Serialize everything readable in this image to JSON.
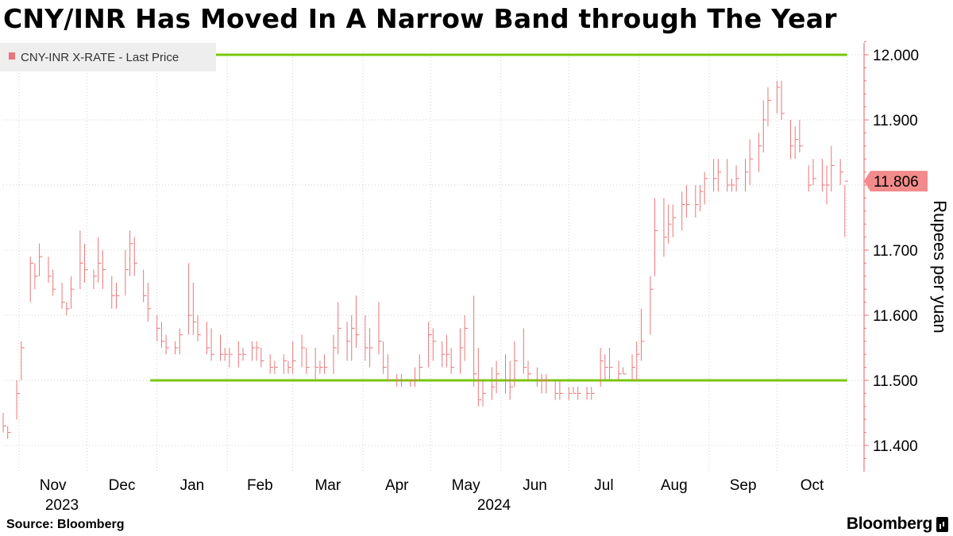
{
  "title": "CNY/INR Has Moved In A Narrow Band through The Year",
  "source": "Source: Bloomberg",
  "brand": "Bloomberg",
  "colors": {
    "series": "#e8777a",
    "band": "#7ac70c",
    "last_price_tag": "#f28b8b"
  },
  "chart_data": {
    "type": "bar",
    "title": "CNY/INR Has Moved In A Narrow Band through The Year",
    "ylabel": "Rupees per yuan",
    "ylim": [
      11.36,
      12.02
    ],
    "y_ticks": [
      "12.000",
      "11.900",
      "11.800",
      "11.700",
      "11.600",
      "11.500",
      "11.400"
    ],
    "x_ticks": [
      "Nov",
      "Dec",
      "Jan",
      "Feb",
      "Mar",
      "Apr",
      "May",
      "Jun",
      "Jul",
      "Aug",
      "Sep",
      "Oct"
    ],
    "year_labels": [
      "2023",
      "2024"
    ],
    "last_price_label": "11.806",
    "band_lines": [
      {
        "value": 12.0,
        "from": "2023-10-25",
        "to": "2024-11-01"
      },
      {
        "value": 11.5,
        "from": "2023-12-29",
        "to": "2024-11-01"
      }
    ],
    "series": [
      {
        "name": "CNY-INR X-RATE - Last Price",
        "style": "ohlc",
        "x": [
          "2023-10-25",
          "2023-10-27",
          "2023-10-31",
          "2023-11-02",
          "2023-11-06",
          "2023-11-08",
          "2023-11-10",
          "2023-11-14",
          "2023-11-16",
          "2023-11-20",
          "2023-11-22",
          "2023-11-24",
          "2023-11-28",
          "2023-11-30",
          "2023-12-04",
          "2023-12-06",
          "2023-12-08",
          "2023-12-12",
          "2023-12-14",
          "2023-12-18",
          "2023-12-20",
          "2023-12-22",
          "2023-12-26",
          "2023-12-28",
          "2024-01-01",
          "2024-01-03",
          "2024-01-05",
          "2024-01-09",
          "2024-01-11",
          "2024-01-15",
          "2024-01-17",
          "2024-01-19",
          "2024-01-23",
          "2024-01-25",
          "2024-01-29",
          "2024-01-31",
          "2024-02-02",
          "2024-02-06",
          "2024-02-08",
          "2024-02-12",
          "2024-02-14",
          "2024-02-16",
          "2024-02-20",
          "2024-02-22",
          "2024-02-26",
          "2024-02-28",
          "2024-03-01",
          "2024-03-05",
          "2024-03-07",
          "2024-03-11",
          "2024-03-13",
          "2024-03-15",
          "2024-03-19",
          "2024-03-21",
          "2024-03-25",
          "2024-03-27",
          "2024-03-29",
          "2024-04-02",
          "2024-04-04",
          "2024-04-08",
          "2024-04-10",
          "2024-04-12",
          "2024-04-16",
          "2024-04-18",
          "2024-04-22",
          "2024-04-24",
          "2024-04-26",
          "2024-04-30",
          "2024-05-02",
          "2024-05-06",
          "2024-05-08",
          "2024-05-10",
          "2024-05-14",
          "2024-05-16",
          "2024-05-20",
          "2024-05-22",
          "2024-05-24",
          "2024-05-28",
          "2024-05-30",
          "2024-06-03",
          "2024-06-05",
          "2024-06-07",
          "2024-06-11",
          "2024-06-13",
          "2024-06-17",
          "2024-06-19",
          "2024-06-21",
          "2024-06-25",
          "2024-06-27",
          "2024-07-01",
          "2024-07-03",
          "2024-07-05",
          "2024-07-09",
          "2024-07-11",
          "2024-07-15",
          "2024-07-17",
          "2024-07-19",
          "2024-07-23",
          "2024-07-25",
          "2024-07-29",
          "2024-07-31",
          "2024-08-02",
          "2024-08-06",
          "2024-08-08",
          "2024-08-12",
          "2024-08-14",
          "2024-08-16",
          "2024-08-20",
          "2024-08-22",
          "2024-08-26",
          "2024-08-28",
          "2024-08-30",
          "2024-09-03",
          "2024-09-05",
          "2024-09-09",
          "2024-09-11",
          "2024-09-13",
          "2024-09-17",
          "2024-09-19",
          "2024-09-23",
          "2024-09-25",
          "2024-09-27",
          "2024-10-01",
          "2024-10-03",
          "2024-10-07",
          "2024-10-09",
          "2024-10-11",
          "2024-10-15",
          "2024-10-17",
          "2024-10-21",
          "2024-10-23",
          "2024-10-25",
          "2024-10-29",
          "2024-10-31"
        ],
        "high": [
          11.45,
          11.43,
          11.5,
          11.56,
          11.69,
          11.68,
          11.71,
          11.69,
          11.67,
          11.65,
          11.62,
          11.66,
          11.73,
          11.71,
          11.67,
          11.72,
          11.7,
          11.66,
          11.65,
          11.7,
          11.73,
          11.72,
          11.67,
          11.65,
          11.6,
          11.59,
          11.57,
          11.56,
          11.58,
          11.68,
          11.65,
          11.6,
          11.59,
          11.58,
          11.57,
          11.55,
          11.55,
          11.56,
          11.55,
          11.56,
          11.56,
          11.55,
          11.54,
          11.53,
          11.54,
          11.53,
          11.56,
          11.57,
          11.55,
          11.55,
          11.53,
          11.54,
          11.57,
          11.62,
          11.59,
          11.6,
          11.63,
          11.6,
          11.58,
          11.62,
          11.56,
          11.54,
          11.51,
          11.51,
          11.5,
          11.52,
          11.54,
          11.59,
          11.58,
          11.56,
          11.57,
          11.55,
          11.58,
          11.6,
          11.63,
          11.55,
          11.5,
          11.52,
          11.53,
          11.54,
          11.53,
          11.56,
          11.58,
          11.53,
          11.52,
          11.51,
          11.51,
          11.5,
          11.5,
          11.49,
          11.49,
          11.49,
          11.49,
          11.49,
          11.55,
          11.54,
          11.55,
          11.53,
          11.52,
          11.54,
          11.56,
          11.61,
          11.66,
          11.78,
          11.78,
          11.77,
          11.77,
          11.79,
          11.8,
          11.8,
          11.8,
          11.82,
          11.84,
          11.84,
          11.84,
          11.81,
          11.83,
          11.84,
          11.87,
          11.88,
          11.93,
          11.95,
          11.96,
          11.96,
          11.9,
          11.89,
          11.9,
          11.83,
          11.84,
          11.84,
          11.83,
          11.86,
          11.84,
          11.8
        ],
        "low": [
          11.42,
          11.41,
          11.44,
          11.5,
          11.62,
          11.64,
          11.66,
          11.65,
          11.63,
          11.61,
          11.6,
          11.61,
          11.64,
          11.65,
          11.64,
          11.65,
          11.64,
          11.61,
          11.61,
          11.63,
          11.66,
          11.66,
          11.62,
          11.59,
          11.56,
          11.55,
          11.54,
          11.54,
          11.54,
          11.57,
          11.57,
          11.56,
          11.54,
          11.53,
          11.53,
          11.53,
          11.52,
          11.52,
          11.53,
          11.53,
          11.53,
          11.52,
          11.51,
          11.51,
          11.51,
          11.51,
          11.51,
          11.52,
          11.51,
          11.5,
          11.51,
          11.51,
          11.51,
          11.54,
          11.53,
          11.53,
          11.55,
          11.53,
          11.52,
          11.54,
          11.51,
          11.5,
          11.49,
          11.49,
          11.49,
          11.49,
          11.5,
          11.52,
          11.53,
          11.52,
          11.52,
          11.51,
          11.51,
          11.53,
          11.49,
          11.46,
          11.46,
          11.47,
          11.48,
          11.48,
          11.47,
          11.49,
          11.51,
          11.5,
          11.49,
          11.48,
          11.48,
          11.47,
          11.47,
          11.47,
          11.48,
          11.47,
          11.47,
          11.47,
          11.49,
          11.5,
          11.5,
          11.5,
          11.51,
          11.5,
          11.5,
          11.53,
          11.57,
          11.66,
          11.69,
          11.71,
          11.72,
          11.73,
          11.75,
          11.75,
          11.76,
          11.77,
          11.79,
          11.79,
          11.79,
          11.79,
          11.79,
          11.79,
          11.8,
          11.82,
          11.85,
          11.89,
          11.91,
          11.9,
          11.84,
          11.84,
          11.85,
          11.79,
          11.8,
          11.79,
          11.77,
          11.79,
          11.8,
          11.72
        ],
        "close": [
          11.43,
          11.42,
          11.48,
          11.55,
          11.68,
          11.66,
          11.69,
          11.66,
          11.64,
          11.62,
          11.61,
          11.64,
          11.68,
          11.67,
          11.66,
          11.68,
          11.67,
          11.63,
          11.63,
          11.67,
          11.71,
          11.68,
          11.63,
          11.61,
          11.58,
          11.56,
          11.55,
          11.55,
          11.57,
          11.6,
          11.59,
          11.57,
          11.55,
          11.54,
          11.54,
          11.54,
          11.54,
          11.54,
          11.54,
          11.55,
          11.55,
          11.53,
          11.52,
          11.52,
          11.53,
          11.52,
          11.53,
          11.55,
          11.52,
          11.52,
          11.52,
          11.52,
          11.55,
          11.58,
          11.56,
          11.58,
          11.57,
          11.55,
          11.55,
          11.56,
          11.52,
          11.5,
          11.5,
          11.5,
          11.5,
          11.5,
          11.52,
          11.57,
          11.56,
          11.54,
          11.54,
          11.52,
          11.55,
          11.58,
          11.51,
          11.47,
          11.48,
          11.49,
          11.51,
          11.5,
          11.49,
          11.53,
          11.52,
          11.51,
          11.5,
          11.5,
          11.5,
          11.48,
          11.48,
          11.48,
          11.48,
          11.48,
          11.48,
          11.48,
          11.53,
          11.52,
          11.52,
          11.51,
          11.51,
          11.52,
          11.54,
          11.56,
          11.64,
          11.73,
          11.72,
          11.74,
          11.75,
          11.77,
          11.77,
          11.77,
          11.79,
          11.81,
          11.81,
          11.82,
          11.8,
          11.8,
          11.81,
          11.82,
          11.84,
          11.86,
          11.9,
          11.93,
          11.95,
          11.91,
          11.86,
          11.87,
          11.86,
          11.8,
          11.81,
          11.8,
          11.8,
          11.83,
          11.82,
          11.806
        ]
      }
    ]
  }
}
